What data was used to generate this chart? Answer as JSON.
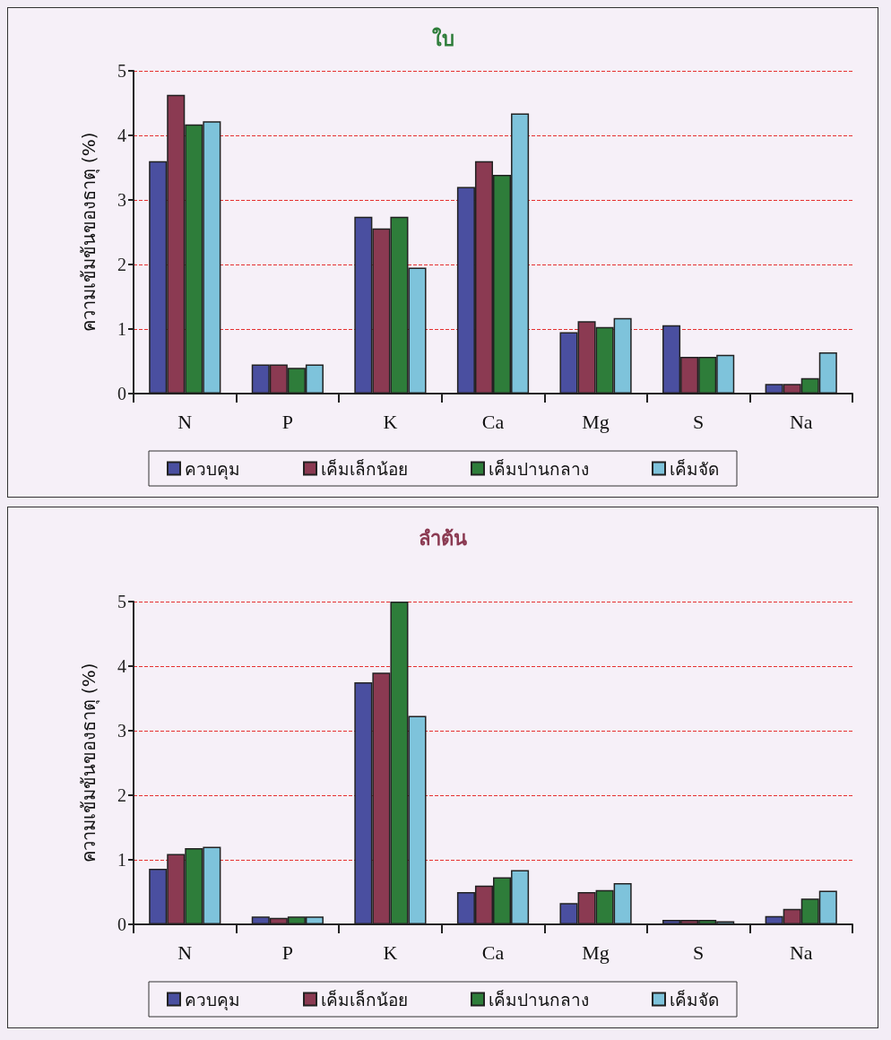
{
  "chart_data": [
    {
      "type": "bar",
      "title": "ใบ",
      "ylabel": "ความเข้มข้นของธาตุ (%)",
      "categories": [
        "N",
        "P",
        "K",
        "Ca",
        "Mg",
        "S",
        "Na"
      ],
      "ylim": [
        0,
        5
      ],
      "yticks": [
        0,
        1,
        2,
        3,
        4,
        5
      ],
      "grid": "y",
      "legend": "bottom",
      "series": [
        {
          "name": "ควบคุม",
          "color": "#4a4fa0",
          "values": [
            3.6,
            0.45,
            2.74,
            3.2,
            0.95,
            1.06,
            0.15
          ]
        },
        {
          "name": "เค็มเล็กน้อย",
          "color": "#8b3a52",
          "values": [
            4.63,
            0.45,
            2.56,
            3.6,
            1.12,
            0.57,
            0.15
          ]
        },
        {
          "name": "เค็มปานกลาง",
          "color": "#2e7d3a",
          "values": [
            4.17,
            0.4,
            2.74,
            3.39,
            1.03,
            0.57,
            0.24
          ]
        },
        {
          "name": "เค็มจัด",
          "color": "#7ec3db",
          "values": [
            4.22,
            0.45,
            1.95,
            4.34,
            1.17,
            0.6,
            0.64
          ]
        }
      ]
    },
    {
      "type": "bar",
      "title": "ลำต้น",
      "ylabel": "ความเข้มข้นของธาตุ (%)",
      "categories": [
        "N",
        "P",
        "K",
        "Ca",
        "Mg",
        "S",
        "Na"
      ],
      "ylim": [
        0,
        5
      ],
      "yticks": [
        0,
        1,
        2,
        3,
        4,
        5
      ],
      "grid": "y",
      "legend": "bottom",
      "series": [
        {
          "name": "ควบคุม",
          "color": "#4a4fa0",
          "values": [
            0.86,
            0.12,
            3.75,
            0.5,
            0.33,
            0.07,
            0.13
          ]
        },
        {
          "name": "เค็มเล็กน้อย",
          "color": "#8b3a52",
          "values": [
            1.09,
            0.1,
            3.9,
            0.6,
            0.5,
            0.07,
            0.24
          ]
        },
        {
          "name": "เค็มปานกลาง",
          "color": "#2e7d3a",
          "values": [
            1.18,
            0.12,
            5.0,
            0.73,
            0.53,
            0.07,
            0.4
          ]
        },
        {
          "name": "เค็มจัด",
          "color": "#7ec3db",
          "values": [
            1.2,
            0.12,
            3.23,
            0.84,
            0.64,
            0.05,
            0.52
          ]
        }
      ]
    }
  ]
}
